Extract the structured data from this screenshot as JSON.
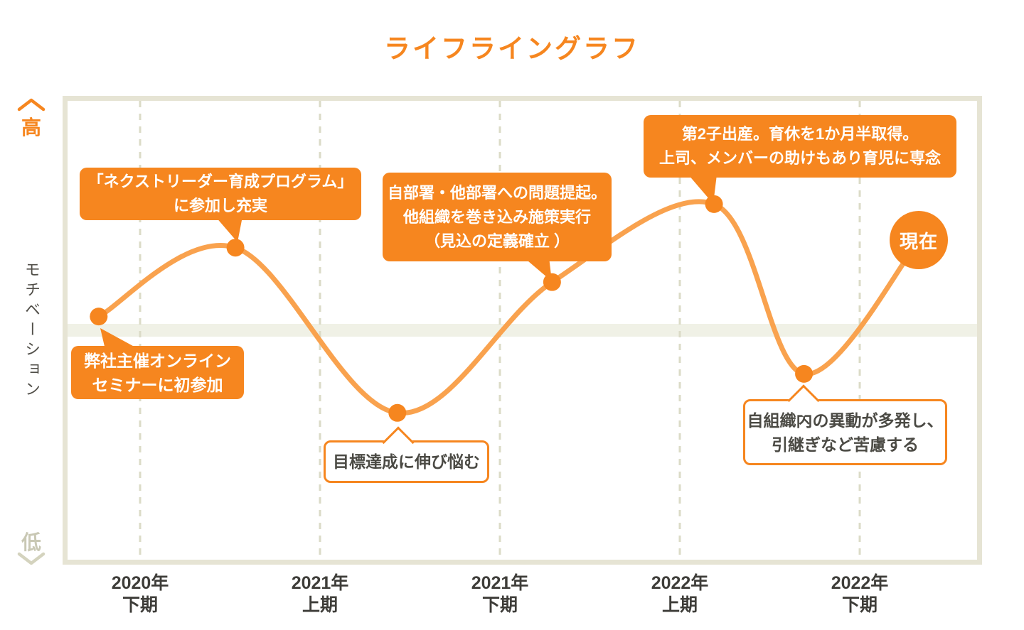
{
  "title": "ライフライングラフ",
  "now_label": "現在",
  "colors": {
    "accent": "#F6861F",
    "curve_line": "#F9A24E",
    "baseline_band": "#F0F1E6",
    "gridline": "#DBDBC7",
    "plot_border": "#E6E4D4",
    "axis_text": "#3E3D39",
    "white_bubble_text": "#4B4A44",
    "low_label": "#C9C8B4"
  },
  "axis": {
    "high": "高",
    "low": "低",
    "ylabel": "モチベーション",
    "x": [
      {
        "year": "2020年",
        "term": "下期"
      },
      {
        "year": "2021年",
        "term": "上期"
      },
      {
        "year": "2021年",
        "term": "下期"
      },
      {
        "year": "2022年",
        "term": "上期"
      },
      {
        "year": "2022年",
        "term": "下期"
      }
    ]
  },
  "bubbles": {
    "program": {
      "line1": "「ネクストリーダー育成プログラム」",
      "line2": "に参加し充実"
    },
    "mondai": {
      "line1": "自部署・他部署への問題提起。",
      "line2": "他組織を巻き込み施策実行",
      "line3": "（見込の定義確立 ）"
    },
    "shussan": {
      "line1": "第2子出産。育休を1か月半取得。",
      "line2": "上司、メンバーの助けもあり育児に専念"
    },
    "seminar": {
      "line1": "弊社主催オンライン",
      "line2": "セミナーに初参加"
    },
    "mokuhyo": {
      "line1": "目標達成に伸び悩む"
    },
    "ido": {
      "line1": "自組織内の異動が多発し、",
      "line2": "引継ぎなど苦慮する"
    }
  },
  "chart_data": {
    "type": "line",
    "title": "ライフライングラフ",
    "ylabel": "モチベーション",
    "y_endpoint_labels": {
      "high": "高",
      "low": "低"
    },
    "ylim": [
      -100,
      100
    ],
    "baseline": 0,
    "grid": "vertical-dashed",
    "x_categories": [
      "2020年下期",
      "2021年上期",
      "2021年下期",
      "2022年上期",
      "2022年下期"
    ],
    "x_unit": "half-year index (0 = 2020年下期 gridline)",
    "points": [
      {
        "x": -0.23,
        "y": 6,
        "event": "弊社主催オンラインセミナーに初参加",
        "marker": "dot"
      },
      {
        "x": 0.53,
        "y": 36,
        "event": "「ネクストリーダー育成プログラム」に参加し充実",
        "marker": "dot"
      },
      {
        "x": 1.43,
        "y": -36,
        "event": "目標達成に伸び悩む",
        "marker": "dot"
      },
      {
        "x": 2.29,
        "y": 21,
        "event": "自部署・他部署への問題提起。他組織を巻き込み施策実行（見込の定義確立）",
        "marker": "dot"
      },
      {
        "x": 3.19,
        "y": 55,
        "event": "第2子出産。育休を1か月半取得。上司、メンバーの助けもあり育児に専念",
        "marker": "dot"
      },
      {
        "x": 3.69,
        "y": -19,
        "event": "自組織内の異動が多発し、引継ぎなど苦慮する",
        "marker": "dot"
      },
      {
        "x": 4.33,
        "y": 39,
        "event": "現在",
        "marker": "big_circle"
      }
    ]
  }
}
